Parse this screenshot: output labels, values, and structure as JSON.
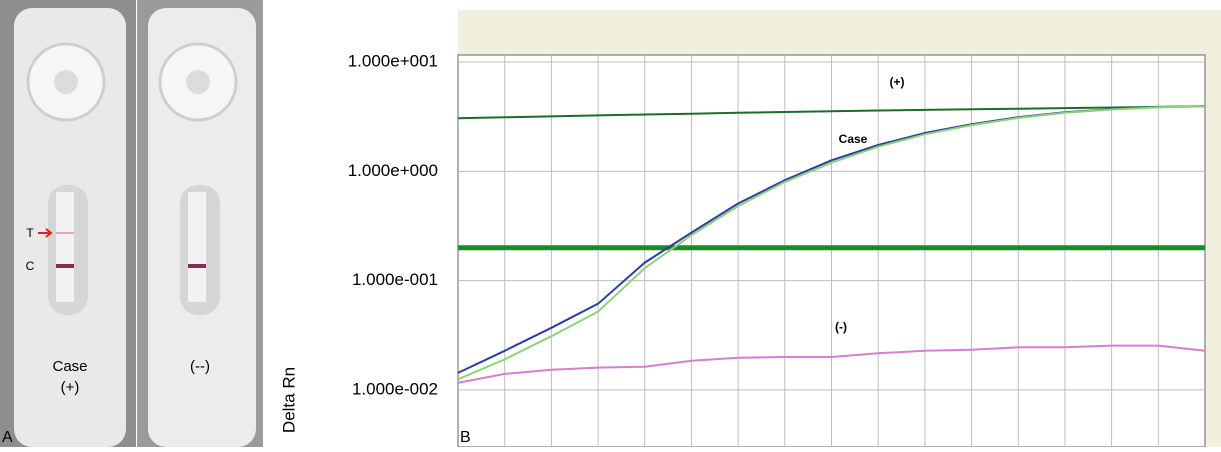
{
  "panel_a": {
    "label": "A",
    "strips": [
      {
        "lines": [
          "Case",
          "(+)"
        ],
        "test_label": "T",
        "control_label": "C"
      },
      {
        "lines": [
          "(--)"
        ]
      }
    ]
  },
  "chart_data": {
    "type": "line",
    "panel_label": "B",
    "ylabel": "Delta Rn",
    "log_y": true,
    "grid": true,
    "ylim": [
      0.003,
      11.6
    ],
    "yticks": [
      {
        "value": 10,
        "label": "1.000e+001"
      },
      {
        "value": 1,
        "label": "1.000e+000"
      },
      {
        "value": 0.1,
        "label": "1.000e-001"
      },
      {
        "value": 0.01,
        "label": "1.000e-002"
      }
    ],
    "threshold": 0.2,
    "threshold_color": "#1a8a2e",
    "series": [
      {
        "name": "(+)",
        "color": "#1f6b2a",
        "values": [
          3.06,
          3.12,
          3.18,
          3.25,
          3.31,
          3.37,
          3.43,
          3.49,
          3.55,
          3.6,
          3.65,
          3.7,
          3.74,
          3.79,
          3.84,
          3.89,
          3.94
        ]
      },
      {
        "name": "Case",
        "color": "#2b3f9e",
        "values": [
          0.0143,
          0.0228,
          0.037,
          0.0615,
          0.146,
          0.275,
          0.508,
          0.83,
          1.26,
          1.74,
          2.24,
          2.7,
          3.13,
          3.47,
          3.7,
          3.87,
          3.94
        ]
      },
      {
        "color": "#8fd17a",
        "values": [
          0.0125,
          0.019,
          0.031,
          0.052,
          0.13,
          0.26,
          0.48,
          0.8,
          1.2,
          1.68,
          2.18,
          2.65,
          3.08,
          3.43,
          3.68,
          3.85,
          3.93
        ]
      },
      {
        "name": "(-)",
        "color": "#d47fd0",
        "values": [
          0.0116,
          0.014,
          0.0153,
          0.016,
          0.0163,
          0.0185,
          0.0197,
          0.02,
          0.02,
          0.0216,
          0.0228,
          0.0233,
          0.0245,
          0.0245,
          0.0254,
          0.0254,
          0.0228
        ]
      }
    ]
  }
}
